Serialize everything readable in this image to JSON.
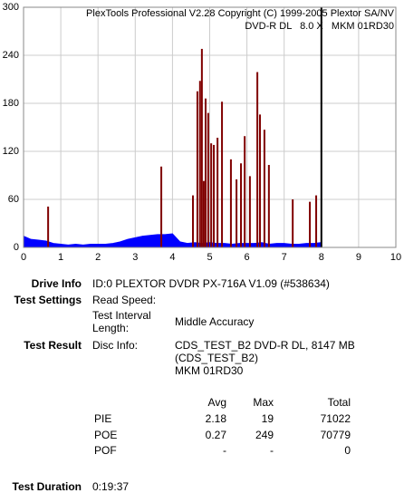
{
  "chart_data": {
    "type": "bar",
    "watermark": [
      "PlexTools Professional V2.28 Copyright (C) 1999-2005 Plextor SA/NV",
      "DVD-R DL   8.0 X   MKM 01RD30"
    ],
    "xlim": [
      0,
      10
    ],
    "xticks": [
      0,
      1,
      2,
      3,
      4,
      5,
      6,
      7,
      8,
      9,
      10
    ],
    "ylim": [
      0,
      300
    ],
    "yticks": [
      0,
      60,
      120,
      180,
      240,
      300
    ],
    "grid": true,
    "marker_x": 8,
    "series": [
      {
        "style": "area",
        "color": "#0000ff",
        "x": [
          0,
          0.2,
          0.4,
          0.6,
          0.8,
          1.0,
          1.2,
          1.4,
          1.6,
          1.8,
          2.0,
          2.2,
          2.4,
          2.6,
          2.8,
          3.0,
          3.2,
          3.4,
          3.6,
          3.8,
          4.0,
          4.2,
          4.4,
          4.6,
          4.8,
          5.0,
          5.2,
          5.4,
          5.6,
          5.8,
          6.0,
          6.2,
          6.4,
          6.6,
          6.8,
          7.0,
          7.2,
          7.4,
          7.6,
          7.8,
          8.0
        ],
        "values": [
          14,
          10,
          9,
          8,
          5,
          4,
          3,
          4,
          3,
          4,
          4,
          4,
          5,
          7,
          10,
          12,
          14,
          15,
          16,
          16,
          17,
          7,
          5,
          6,
          5,
          6,
          5,
          5,
          4,
          5,
          5,
          5,
          6,
          4,
          5,
          5,
          4,
          4,
          5,
          5,
          6
        ]
      },
      {
        "style": "spikes",
        "color": "#800000",
        "x": [
          0.66,
          3.7,
          4.55,
          4.67,
          4.74,
          4.79,
          4.84,
          4.89,
          4.96,
          5.04,
          5.11,
          5.21,
          5.33,
          5.57,
          5.72,
          5.84,
          5.94,
          6.08,
          6.28,
          6.35,
          6.47,
          6.59,
          7.23,
          7.69,
          7.86
        ],
        "values": [
          51,
          101,
          65,
          195,
          208,
          248,
          83,
          186,
          168,
          130,
          128,
          137,
          182,
          110,
          85,
          105,
          139,
          89,
          219,
          166,
          147,
          103,
          60,
          57,
          65
        ]
      }
    ]
  },
  "info": {
    "drive_info": {
      "label": "Drive Info",
      "value": "ID:0 PLEXTOR DVDR PX-716A V1.09 (#538634)"
    },
    "test_settings": {
      "label": "Test Settings",
      "read_speed": "Read Speed:",
      "interval_label": "Test Interval Length:",
      "interval_value": "Middle Accuracy"
    },
    "test_result": {
      "label": "Test Result",
      "disc_info_label": "Disc Info:",
      "disc_info": [
        "CDS_TEST_B2 DVD-R DL, 8147 MB",
        "(CDS_TEST_B2)",
        "MKM 01RD30"
      ]
    },
    "table": {
      "header": [
        "Avg",
        "Max",
        "Total"
      ],
      "rows": [
        [
          "PIE",
          2.18,
          19,
          71022
        ],
        [
          "POE",
          0.27,
          249,
          70779
        ],
        [
          "POF",
          "-",
          "-",
          0
        ]
      ]
    },
    "test_duration": {
      "label": "Test Duration",
      "value": "0:19:37"
    }
  }
}
